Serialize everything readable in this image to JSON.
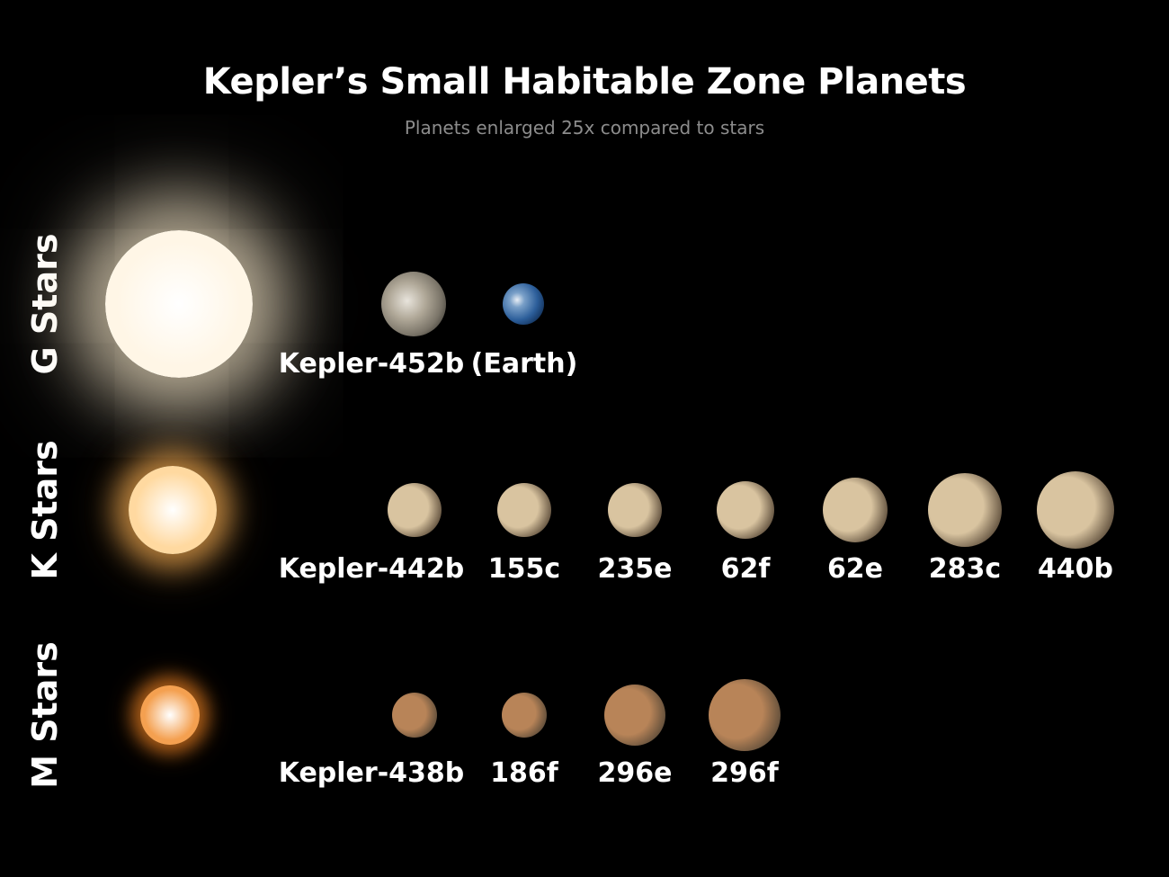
{
  "title": "Kepler’s Small Habitable Zone Planets",
  "subtitle": "Planets enlarged 25x compared to stars",
  "rows": [
    {
      "label": "G Stars",
      "star_color": "#fff6e6",
      "glow_color": "#f5e6c8",
      "planets": [
        {
          "name": "Kepler-452b",
          "color": "#b8b4a8",
          "kind": "rocky"
        },
        {
          "name": "(Earth)",
          "color": "#3a6ea8",
          "kind": "earth"
        }
      ]
    },
    {
      "label": "K Stars",
      "star_color": "#ffd9a0",
      "glow_color": "#f0a850",
      "planets": [
        {
          "name": "Kepler-442b",
          "color": "#d9c4a0"
        },
        {
          "name": "155c",
          "color": "#d9c4a0"
        },
        {
          "name": "235e",
          "color": "#d9c4a0"
        },
        {
          "name": "62f",
          "color": "#d9c4a0"
        },
        {
          "name": "62e",
          "color": "#d9c4a0"
        },
        {
          "name": "283c",
          "color": "#d9c4a0"
        },
        {
          "name": "440b",
          "color": "#d9c4a0"
        }
      ]
    },
    {
      "label": "M Stars",
      "star_color": "#f4a050",
      "glow_color": "#e07a20",
      "planets": [
        {
          "name": "Kepler-438b",
          "color": "#b88458"
        },
        {
          "name": "186f",
          "color": "#b88458"
        },
        {
          "name": "296e",
          "color": "#b88458"
        },
        {
          "name": "296f",
          "color": "#b88458"
        }
      ]
    }
  ]
}
